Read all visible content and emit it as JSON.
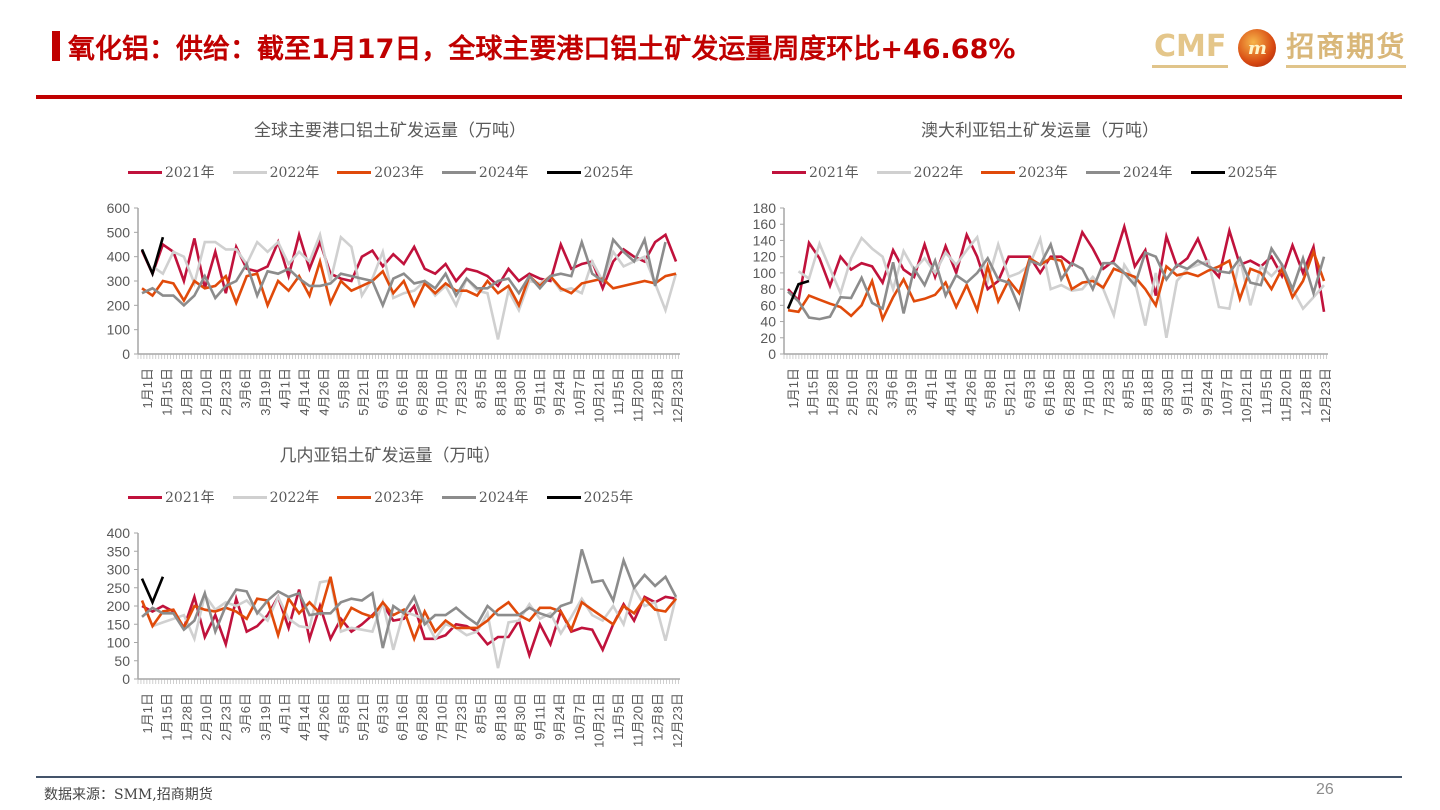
{
  "header": {
    "title": "氧化铝：供给：截至1月17日，全球主要港口铝土矿发运量周度环比+46.68%",
    "logo_latin": "CMF",
    "logo_mark": "m",
    "logo_cn": "招商期货"
  },
  "footer": {
    "source": "数据来源：SMM,招商期货",
    "page_number": "26"
  },
  "series_colors": {
    "2021年": "#c0123c",
    "2022年": "#d0d0d0",
    "2023年": "#e04a0a",
    "2024年": "#8c8c8c",
    "2025年": "#000000"
  },
  "x_tick_labels": [
    "1月1日",
    "1月15日",
    "1月28日",
    "2月10日",
    "2月23日",
    "3月6日",
    "3月19日",
    "4月1日",
    "4月14日",
    "4月26日",
    "5月8日",
    "5月21日",
    "6月3日",
    "6月16日",
    "6月28日",
    "7月10日",
    "7月23日",
    "8月5日",
    "8月18日",
    "8月30日",
    "9月11日",
    "9月24日",
    "10月7日",
    "10月21日",
    "11月5日",
    "11月20日",
    "12月8日",
    "12月23日"
  ],
  "chart_data": [
    {
      "id": "global",
      "type": "line",
      "title": "全球主要港口铝土矿发运量（万吨）",
      "xlabel": "",
      "ylabel": "",
      "ylim": [
        0,
        600
      ],
      "yticks": [
        0,
        100,
        200,
        300,
        400,
        500,
        600
      ],
      "grid": false,
      "legend_position": "top",
      "legend": [
        "2021年",
        "2022年",
        "2023年",
        "2024年",
        "2025年"
      ],
      "n_points": 52,
      "series": [
        {
          "name": "2021年",
          "values": [
            425,
            330,
            450,
            420,
            300,
            475,
            270,
            420,
            250,
            440,
            350,
            340,
            360,
            460,
            320,
            490,
            350,
            460,
            330,
            310,
            300,
            400,
            425,
            360,
            410,
            370,
            440,
            350,
            330,
            370,
            300,
            350,
            340,
            320,
            280,
            350,
            300,
            330,
            310,
            300,
            450,
            350,
            370,
            380,
            270,
            380,
            430,
            400,
            380,
            460,
            490,
            380
          ]
        },
        {
          "name": "2022年",
          "values": [
            null,
            360,
            330,
            420,
            400,
            290,
            460,
            460,
            430,
            430,
            370,
            460,
            420,
            460,
            370,
            420,
            380,
            490,
            300,
            480,
            440,
            240,
            310,
            420,
            230,
            250,
            260,
            300,
            240,
            280,
            200,
            310,
            260,
            250,
            60,
            260,
            180,
            300,
            290,
            320,
            260,
            270,
            250,
            380,
            300,
            420,
            360,
            380,
            400,
            290,
            180,
            330
          ]
        },
        {
          "name": "2023年",
          "values": [
            270,
            240,
            300,
            290,
            220,
            300,
            270,
            280,
            320,
            210,
            320,
            330,
            200,
            300,
            260,
            320,
            240,
            380,
            210,
            300,
            260,
            280,
            300,
            340,
            250,
            300,
            200,
            290,
            250,
            290,
            260,
            260,
            240,
            300,
            250,
            280,
            200,
            320,
            280,
            320,
            270,
            250,
            290,
            300,
            310,
            270,
            280,
            290,
            300,
            290,
            320,
            330
          ]
        },
        {
          "name": "2024年",
          "values": [
            250,
            270,
            240,
            240,
            200,
            240,
            320,
            230,
            280,
            300,
            370,
            240,
            340,
            330,
            350,
            310,
            280,
            280,
            290,
            330,
            320,
            310,
            300,
            200,
            310,
            330,
            290,
            300,
            270,
            330,
            240,
            310,
            270,
            270,
            300,
            310,
            250,
            320,
            270,
            320,
            330,
            320,
            460,
            330,
            300,
            470,
            420,
            380,
            470,
            280,
            460,
            null
          ]
        },
        {
          "name": "2025年",
          "values": [
            430,
            330,
            480,
            null,
            null,
            null,
            null,
            null,
            null,
            null,
            null,
            null,
            null,
            null,
            null,
            null,
            null,
            null,
            null,
            null,
            null,
            null,
            null,
            null,
            null,
            null,
            null,
            null,
            null,
            null,
            null,
            null,
            null,
            null,
            null,
            null,
            null,
            null,
            null,
            null,
            null,
            null,
            null,
            null,
            null,
            null,
            null,
            null,
            null,
            null,
            null,
            null
          ]
        }
      ]
    },
    {
      "id": "australia",
      "type": "line",
      "title": "澳大利亚铝土矿发运量（万吨）",
      "xlabel": "",
      "ylabel": "",
      "ylim": [
        0,
        180
      ],
      "yticks": [
        0,
        20,
        40,
        60,
        80,
        100,
        120,
        140,
        160,
        180
      ],
      "grid": false,
      "legend_position": "top",
      "legend": [
        "2021年",
        "2022年",
        "2023年",
        "2024年",
        "2025年"
      ],
      "n_points": 52,
      "series": [
        {
          "name": "2021年",
          "values": [
            80,
            66,
            137,
            118,
            84,
            120,
            104,
            112,
            108,
            88,
            128,
            104,
            95,
            135,
            95,
            133,
            100,
            147,
            120,
            80,
            90,
            120,
            120,
            120,
            100,
            120,
            120,
            110,
            150,
            130,
            105,
            115,
            157,
            108,
            128,
            72,
            145,
            108,
            118,
            142,
            110,
            95,
            152,
            110,
            115,
            108,
            120,
            96,
            134,
            100,
            132,
            52
          ]
        },
        {
          "name": "2022年",
          "values": [
            null,
            102,
            93,
            136,
            105,
            75,
            118,
            143,
            130,
            120,
            80,
            127,
            104,
            118,
            100,
            125,
            110,
            128,
            144,
            90,
            135,
            95,
            100,
            110,
            142,
            80,
            85,
            78,
            80,
            95,
            80,
            48,
            110,
            90,
            35,
            100,
            20,
            90,
            105,
            110,
            115,
            58,
            56,
            118,
            60,
            108,
            96,
            110,
            80,
            56,
            70,
            85
          ]
        },
        {
          "name": "2023年",
          "values": [
            54,
            52,
            72,
            67,
            62,
            58,
            47,
            60,
            90,
            43,
            70,
            92,
            65,
            68,
            73,
            88,
            58,
            85,
            54,
            108,
            65,
            91,
            75,
            118,
            110,
            118,
            115,
            80,
            88,
            90,
            82,
            105,
            100,
            95,
            80,
            60,
            108,
            97,
            100,
            96,
            103,
            108,
            115,
            68,
            105,
            100,
            80,
            105,
            70,
            90,
            126,
            90
          ]
        },
        {
          "name": "2024年",
          "values": [
            77,
            65,
            45,
            43,
            46,
            70,
            69,
            94,
            63,
            56,
            113,
            50,
            105,
            85,
            115,
            72,
            97,
            88,
            100,
            118,
            92,
            88,
            57,
            115,
            110,
            135,
            92,
            112,
            105,
            80,
            112,
            112,
            100,
            85,
            125,
            120,
            92,
            110,
            105,
            115,
            108,
            102,
            100,
            118,
            88,
            85,
            130,
            110,
            80,
            118,
            75,
            120
          ]
        },
        {
          "name": "2025年",
          "values": [
            56,
            86,
            90,
            null,
            null,
            null,
            null,
            null,
            null,
            null,
            null,
            null,
            null,
            null,
            null,
            null,
            null,
            null,
            null,
            null,
            null,
            null,
            null,
            null,
            null,
            null,
            null,
            null,
            null,
            null,
            null,
            null,
            null,
            null,
            null,
            null,
            null,
            null,
            null,
            null,
            null,
            null,
            null,
            null,
            null,
            null,
            null,
            null,
            null,
            null,
            null,
            null
          ]
        }
      ]
    },
    {
      "id": "guinea",
      "type": "line",
      "title": "几内亚铝土矿发运量（万吨）",
      "xlabel": "",
      "ylabel": "",
      "ylim": [
        0,
        400
      ],
      "yticks": [
        0,
        50,
        100,
        150,
        200,
        250,
        300,
        350,
        400
      ],
      "grid": false,
      "legend_position": "top",
      "legend": [
        "2021年",
        "2022年",
        "2023年",
        "2024年",
        "2025年"
      ],
      "n_points": 52,
      "series": [
        {
          "name": "2021年",
          "values": [
            200,
            185,
            200,
            185,
            140,
            225,
            115,
            175,
            95,
            220,
            130,
            145,
            175,
            225,
            140,
            245,
            110,
            200,
            110,
            165,
            130,
            150,
            175,
            205,
            160,
            165,
            200,
            110,
            110,
            120,
            150,
            145,
            130,
            95,
            115,
            115,
            160,
            65,
            150,
            95,
            185,
            130,
            140,
            135,
            80,
            150,
            205,
            160,
            225,
            210,
            225,
            220
          ]
        },
        {
          "name": "2022年",
          "values": [
            null,
            145,
            155,
            165,
            175,
            110,
            230,
            190,
            210,
            200,
            215,
            185,
            160,
            225,
            165,
            145,
            140,
            265,
            270,
            130,
            140,
            135,
            130,
            210,
            80,
            185,
            175,
            165,
            110,
            150,
            140,
            120,
            130,
            180,
            30,
            155,
            160,
            205,
            165,
            180,
            125,
            170,
            220,
            175,
            160,
            200,
            150,
            250,
            200,
            210,
            105,
            225
          ]
        },
        {
          "name": "2023年",
          "values": [
            215,
            145,
            185,
            190,
            140,
            200,
            190,
            185,
            195,
            185,
            165,
            220,
            215,
            120,
            220,
            180,
            210,
            180,
            280,
            145,
            195,
            180,
            170,
            210,
            175,
            190,
            110,
            185,
            130,
            160,
            140,
            140,
            140,
            160,
            190,
            210,
            175,
            160,
            195,
            195,
            185,
            135,
            210,
            190,
            170,
            150,
            200,
            180,
            220,
            190,
            185,
            220
          ]
        },
        {
          "name": "2024年",
          "values": [
            170,
            195,
            180,
            180,
            135,
            160,
            235,
            130,
            200,
            245,
            240,
            180,
            215,
            240,
            225,
            235,
            175,
            180,
            180,
            210,
            220,
            215,
            235,
            85,
            200,
            180,
            225,
            150,
            175,
            175,
            195,
            170,
            150,
            200,
            175,
            175,
            175,
            195,
            180,
            170,
            200,
            210,
            355,
            265,
            270,
            215,
            325,
            250,
            285,
            255,
            280,
            225
          ]
        },
        {
          "name": "2025年",
          "values": [
            275,
            210,
            280,
            null,
            null,
            null,
            null,
            null,
            null,
            null,
            null,
            null,
            null,
            null,
            null,
            null,
            null,
            null,
            null,
            null,
            null,
            null,
            null,
            null,
            null,
            null,
            null,
            null,
            null,
            null,
            null,
            null,
            null,
            null,
            null,
            null,
            null,
            null,
            null,
            null,
            null,
            null,
            null,
            null,
            null,
            null,
            null,
            null,
            null,
            null,
            null,
            null
          ]
        }
      ]
    }
  ]
}
